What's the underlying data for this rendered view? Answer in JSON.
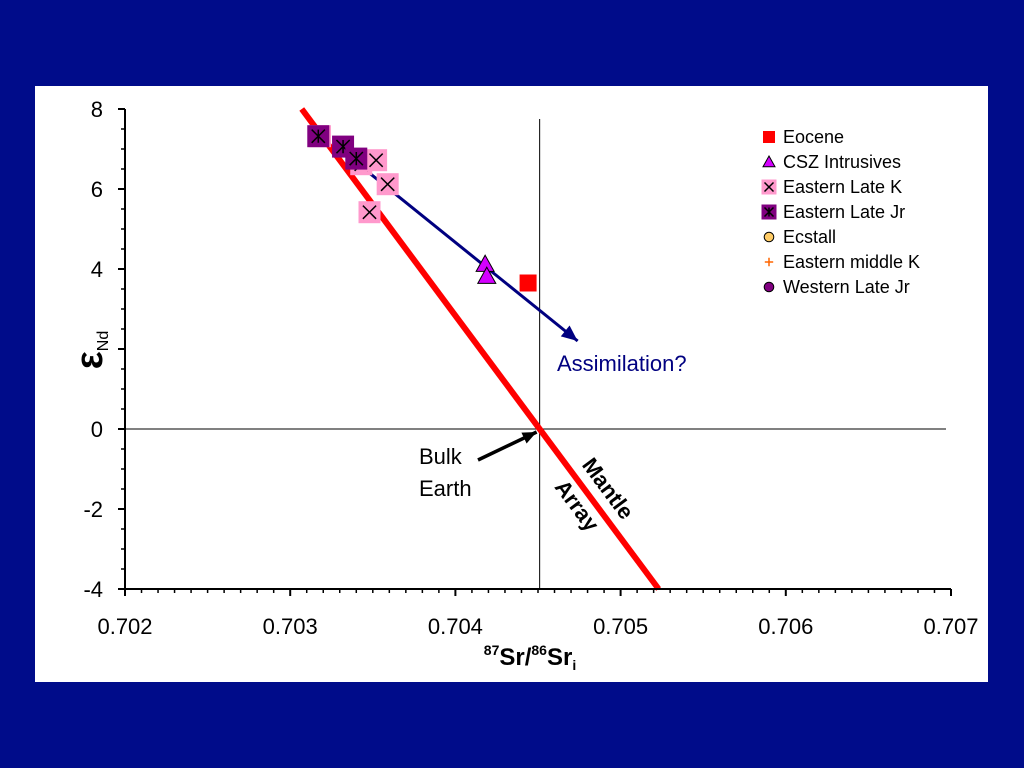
{
  "chart_data": {
    "type": "scatter",
    "title": "",
    "xlabel": {
      "sup1": "87",
      "main1": "Sr/",
      "sup2": "86",
      "main2": "Sr",
      "sub": "i"
    },
    "ylabel": {
      "main": "ε",
      "sub": "Nd"
    },
    "xlim": [
      0.702,
      0.707
    ],
    "ylim": [
      -4,
      8
    ],
    "x_ticks": [
      "0.702",
      "0.703",
      "0.704",
      "0.705",
      "0.706",
      "0.707"
    ],
    "y_ticks": [
      "8",
      "6",
      "4",
      "2",
      "0",
      "-2",
      "-4"
    ],
    "grid": false,
    "legend_position": "top-right",
    "series": [
      {
        "name": "Eocene",
        "marker": "square",
        "color": "#ff0000",
        "points": [
          [
            0.70444,
            3.65
          ]
        ]
      },
      {
        "name": "CSZ Intrusives",
        "marker": "triangle",
        "color": "#d400ff",
        "points": [
          [
            0.70418,
            4.12
          ],
          [
            0.70419,
            3.82
          ]
        ]
      },
      {
        "name": "Eastern Late K",
        "marker": "x-box",
        "color": "#ff99cc",
        "points": [
          [
            0.70318,
            7.32
          ],
          [
            0.70343,
            6.62
          ],
          [
            0.70352,
            6.72
          ],
          [
            0.70359,
            6.12
          ],
          [
            0.70348,
            5.42
          ]
        ]
      },
      {
        "name": "Eastern Late Jr",
        "marker": "star-box",
        "color": "#800080",
        "points": [
          [
            0.70317,
            7.32
          ],
          [
            0.70332,
            7.06
          ],
          [
            0.7034,
            6.76
          ]
        ]
      },
      {
        "name": "Ecstall",
        "marker": "circle",
        "color": "#ffcc66",
        "points": []
      },
      {
        "name": "Eastern middle K",
        "marker": "plus",
        "color": "#ff6600",
        "points": []
      },
      {
        "name": "Western Late Jr",
        "marker": "circle",
        "color": "#800080",
        "points": []
      }
    ],
    "reference_lines": {
      "vertical_x": 0.70451,
      "horizontal_y": 0
    },
    "mantle_array": {
      "color": "#ff0000",
      "start": [
        0.70307,
        8.0
      ],
      "end": [
        0.70523,
        -4.0
      ],
      "label_line1": "Mantle",
      "label_line2": "Array"
    },
    "assimilation_arrow": {
      "color": "#000080",
      "start": [
        0.70329,
        7.03
      ],
      "end": [
        0.70474,
        2.2
      ],
      "label": "Assimilation?"
    },
    "bulk_earth": {
      "label_line1": "Bulk",
      "label_line2": "Earth",
      "point": [
        0.70451,
        0.0
      ]
    }
  }
}
